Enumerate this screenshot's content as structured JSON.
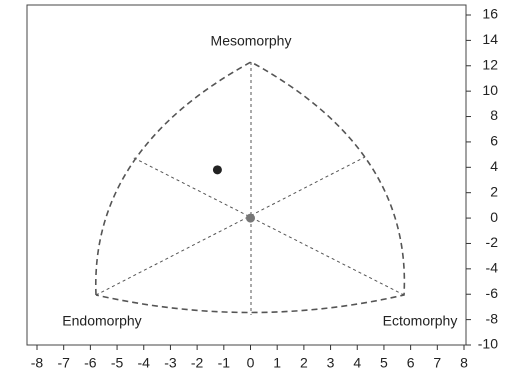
{
  "chart_data": {
    "type": "scatter",
    "annotations": [
      "Mesomorphy",
      "Endomorphy",
      "Ectomorphy"
    ],
    "xlim": [
      -8,
      8
    ],
    "xticks": [
      -8,
      -7,
      -6,
      -5,
      -4,
      -3,
      -2,
      -1,
      0,
      1,
      2,
      3,
      4,
      5,
      6,
      7,
      8
    ],
    "ylim": [
      -10,
      16
    ],
    "yticks": [
      -10,
      -8,
      -6,
      -4,
      -2,
      0,
      2,
      4,
      6,
      8,
      10,
      12,
      14,
      16
    ],
    "series": [
      {
        "color": "#222222",
        "x": [
          -1.24
        ],
        "y": [
          3.8
        ]
      },
      {
        "color": "#777777",
        "x": [
          0
        ],
        "y": [
          0
        ]
      }
    ]
  }
}
